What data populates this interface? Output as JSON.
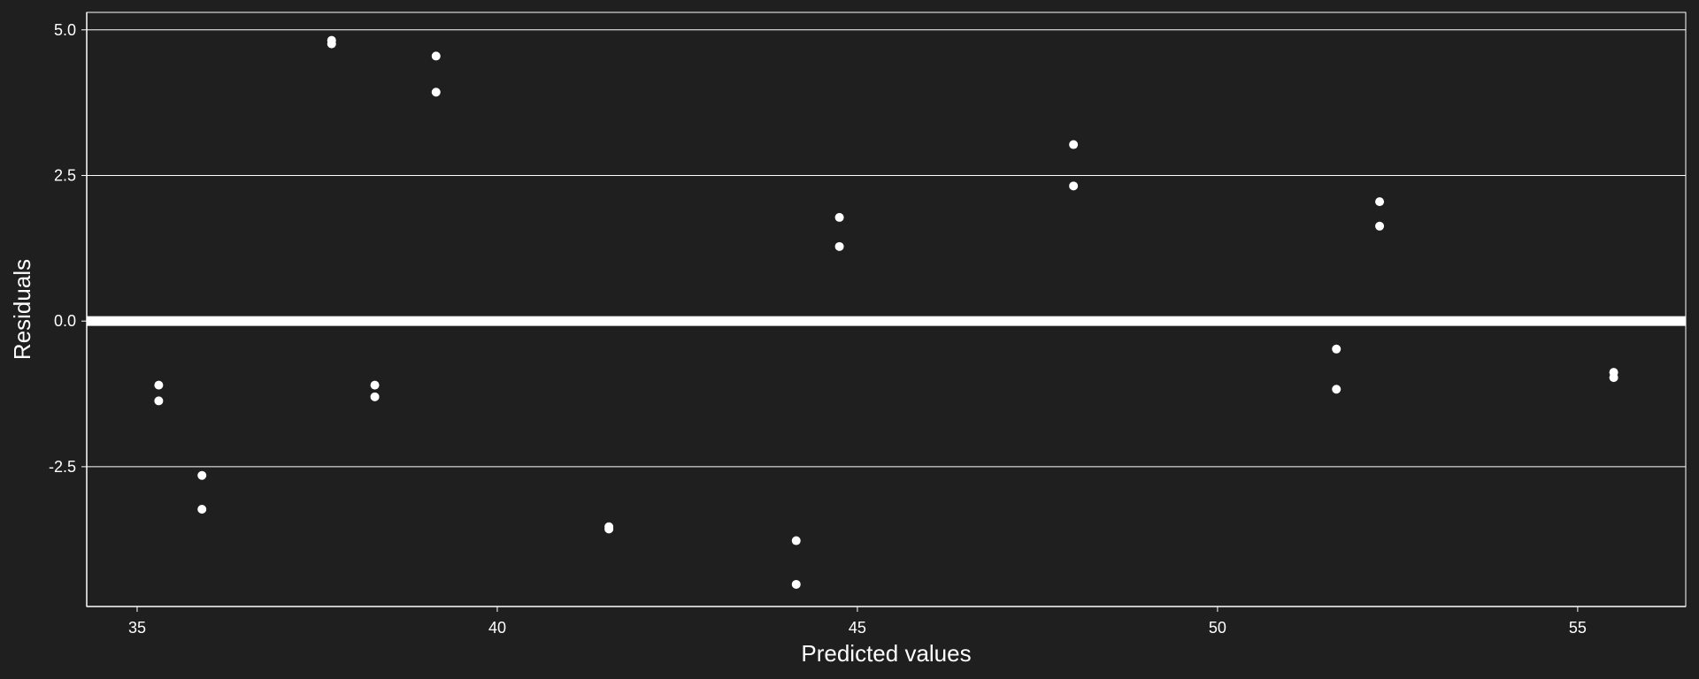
{
  "chart_data": {
    "type": "scatter",
    "title": "",
    "xlabel": "Predicted values",
    "ylabel": "Residuals",
    "xlim": [
      34.3,
      56.5
    ],
    "ylim": [
      -4.9,
      5.3
    ],
    "x_ticks": [
      35,
      40,
      45,
      50,
      55
    ],
    "x_tick_labels": [
      "35",
      "40",
      "45",
      "50",
      "55"
    ],
    "y_ticks": [
      5.0,
      2.5,
      0.0,
      -2.5
    ],
    "y_tick_labels": [
      "5.0",
      "2.5",
      "0.0",
      "-2.5"
    ],
    "grid": {
      "horizontal": true,
      "vertical": false
    },
    "reference_line": {
      "y": 0.0
    },
    "colors": {
      "background": "#1f1f1f",
      "points": "#ffffff",
      "grid": "#ffffff",
      "reference_line": "#ffffff",
      "text": "#ffffff"
    },
    "points": [
      {
        "x": 35.3,
        "y": -1.1
      },
      {
        "x": 35.3,
        "y": -1.37
      },
      {
        "x": 35.9,
        "y": -2.65
      },
      {
        "x": 35.9,
        "y": -3.23
      },
      {
        "x": 37.7,
        "y": 4.82
      },
      {
        "x": 37.7,
        "y": 4.76
      },
      {
        "x": 38.3,
        "y": -1.1
      },
      {
        "x": 38.3,
        "y": -1.3
      },
      {
        "x": 39.15,
        "y": 4.55
      },
      {
        "x": 39.15,
        "y": 3.93
      },
      {
        "x": 41.55,
        "y": -3.53
      },
      {
        "x": 41.55,
        "y": -3.57
      },
      {
        "x": 44.15,
        "y": -3.77
      },
      {
        "x": 44.15,
        "y": -4.52
      },
      {
        "x": 44.75,
        "y": 1.78
      },
      {
        "x": 44.75,
        "y": 1.28
      },
      {
        "x": 48.0,
        "y": 3.03
      },
      {
        "x": 48.0,
        "y": 2.32
      },
      {
        "x": 51.65,
        "y": -0.48
      },
      {
        "x": 51.65,
        "y": -1.17
      },
      {
        "x": 52.25,
        "y": 2.05
      },
      {
        "x": 52.25,
        "y": 1.63
      },
      {
        "x": 55.5,
        "y": -0.88
      },
      {
        "x": 55.5,
        "y": -0.97
      }
    ]
  }
}
